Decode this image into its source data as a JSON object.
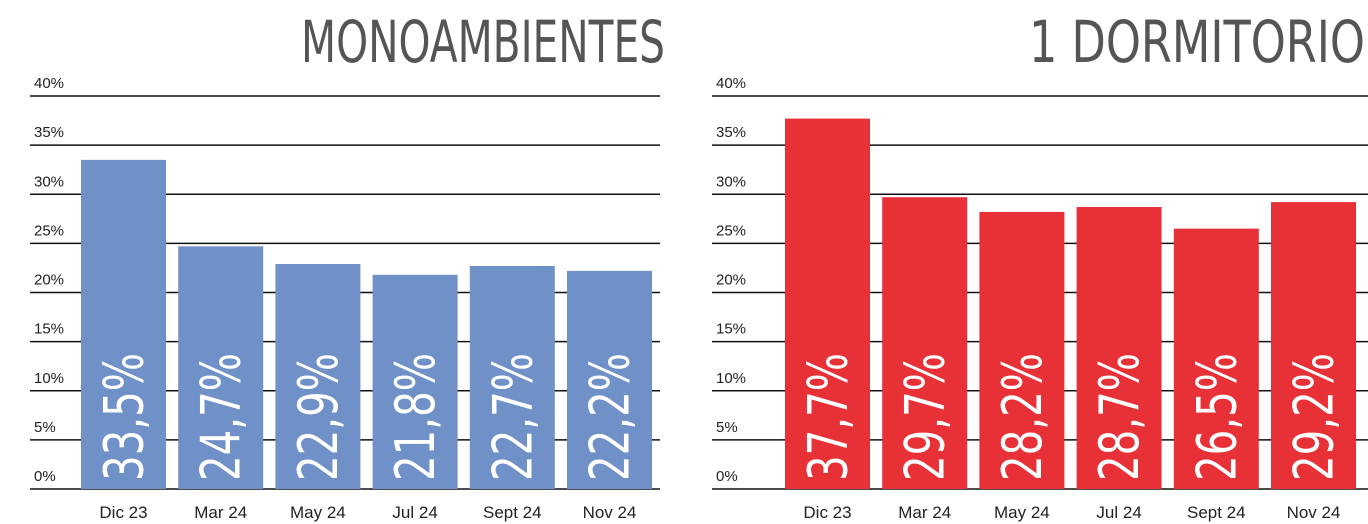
{
  "chart_data": [
    {
      "type": "bar",
      "title": "MONOAMBIENTES",
      "categories": [
        "Dic 23",
        "Mar 24",
        "May 24",
        "Jul 24",
        "Sept 24",
        "Nov 24"
      ],
      "values": [
        33.5,
        24.7,
        22.9,
        21.8,
        22.7,
        22.2
      ],
      "value_labels": [
        "33,5%",
        "24,7%",
        "22,9%",
        "21,8%",
        "22,7%",
        "22,2%"
      ],
      "color": "#7090c8",
      "ylim": [
        0,
        40
      ],
      "yticks": [
        {
          "value": 0,
          "label": "0%"
        },
        {
          "value": 5,
          "label": "5%"
        },
        {
          "value": 10,
          "label": "10%"
        },
        {
          "value": 15,
          "label": "15%"
        },
        {
          "value": 20,
          "label": "20%"
        },
        {
          "value": 25,
          "label": "25%"
        },
        {
          "value": 30,
          "label": "30%"
        },
        {
          "value": 35,
          "label": "35%"
        },
        {
          "value": 40,
          "label": "40%"
        }
      ],
      "grid": true
    },
    {
      "type": "bar",
      "title": "1 DORMITORIO",
      "categories": [
        "Dic 23",
        "Mar 24",
        "May 24",
        "Jul 24",
        "Sept 24",
        "Nov 24"
      ],
      "values": [
        37.7,
        29.7,
        28.2,
        28.7,
        26.5,
        29.2
      ],
      "value_labels": [
        "37,7%",
        "29,7%",
        "28,2%",
        "28,7%",
        "26,5%",
        "29,2%"
      ],
      "color": "#e83037",
      "ylim": [
        0,
        40
      ],
      "yticks": [
        {
          "value": 0,
          "label": "0%"
        },
        {
          "value": 5,
          "label": "5%"
        },
        {
          "value": 10,
          "label": "10%"
        },
        {
          "value": 15,
          "label": "15%"
        },
        {
          "value": 20,
          "label": "20%"
        },
        {
          "value": 25,
          "label": "25%"
        },
        {
          "value": 30,
          "label": "30%"
        },
        {
          "value": 35,
          "label": "35%"
        },
        {
          "value": 40,
          "label": "40%"
        }
      ],
      "grid": true
    }
  ]
}
